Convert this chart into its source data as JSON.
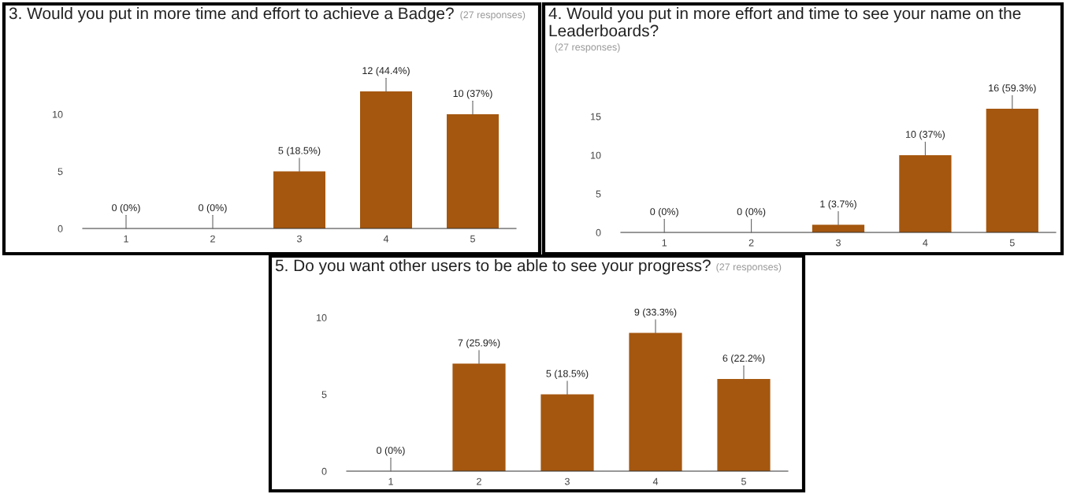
{
  "chart_data": [
    {
      "type": "bar",
      "title": "3. Would you put in more time and effort to achieve a Badge?",
      "subtitle": "(27 responses)",
      "categories": [
        "1",
        "2",
        "3",
        "4",
        "5"
      ],
      "values": [
        0,
        0,
        5,
        12,
        10
      ],
      "value_labels": [
        "0 (0%)",
        "0 (0%)",
        "5 (18.5%)",
        "12 (44.4%)",
        "10 (37%)"
      ],
      "color": "#a5570f",
      "ylim": [
        0,
        12
      ],
      "yticks": [
        0,
        5,
        10
      ]
    },
    {
      "type": "bar",
      "title": "4. Would you put in more effort and time to see your name on the Leaderboards?",
      "subtitle": "(27 responses)",
      "categories": [
        "1",
        "2",
        "3",
        "4",
        "5"
      ],
      "values": [
        0,
        0,
        1,
        10,
        16
      ],
      "value_labels": [
        "0 (0%)",
        "0 (0%)",
        "1 (3.7%)",
        "10 (37%)",
        "16 (59.3%)"
      ],
      "color": "#a5570f",
      "ylim": [
        0,
        16
      ],
      "yticks": [
        0,
        5,
        10,
        15
      ]
    },
    {
      "type": "bar",
      "title": "5. Do you want other users to be able to see your progress?",
      "subtitle": "(27 responses)",
      "categories": [
        "1",
        "2",
        "3",
        "4",
        "5"
      ],
      "values": [
        0,
        7,
        5,
        9,
        6
      ],
      "value_labels": [
        "0 (0%)",
        "7 (25.9%)",
        "5 (18.5%)",
        "9 (33.3%)",
        "6 (22.2%)"
      ],
      "color": "#a5570f",
      "ylim": [
        0,
        10
      ],
      "yticks": [
        0,
        5,
        10
      ]
    }
  ]
}
